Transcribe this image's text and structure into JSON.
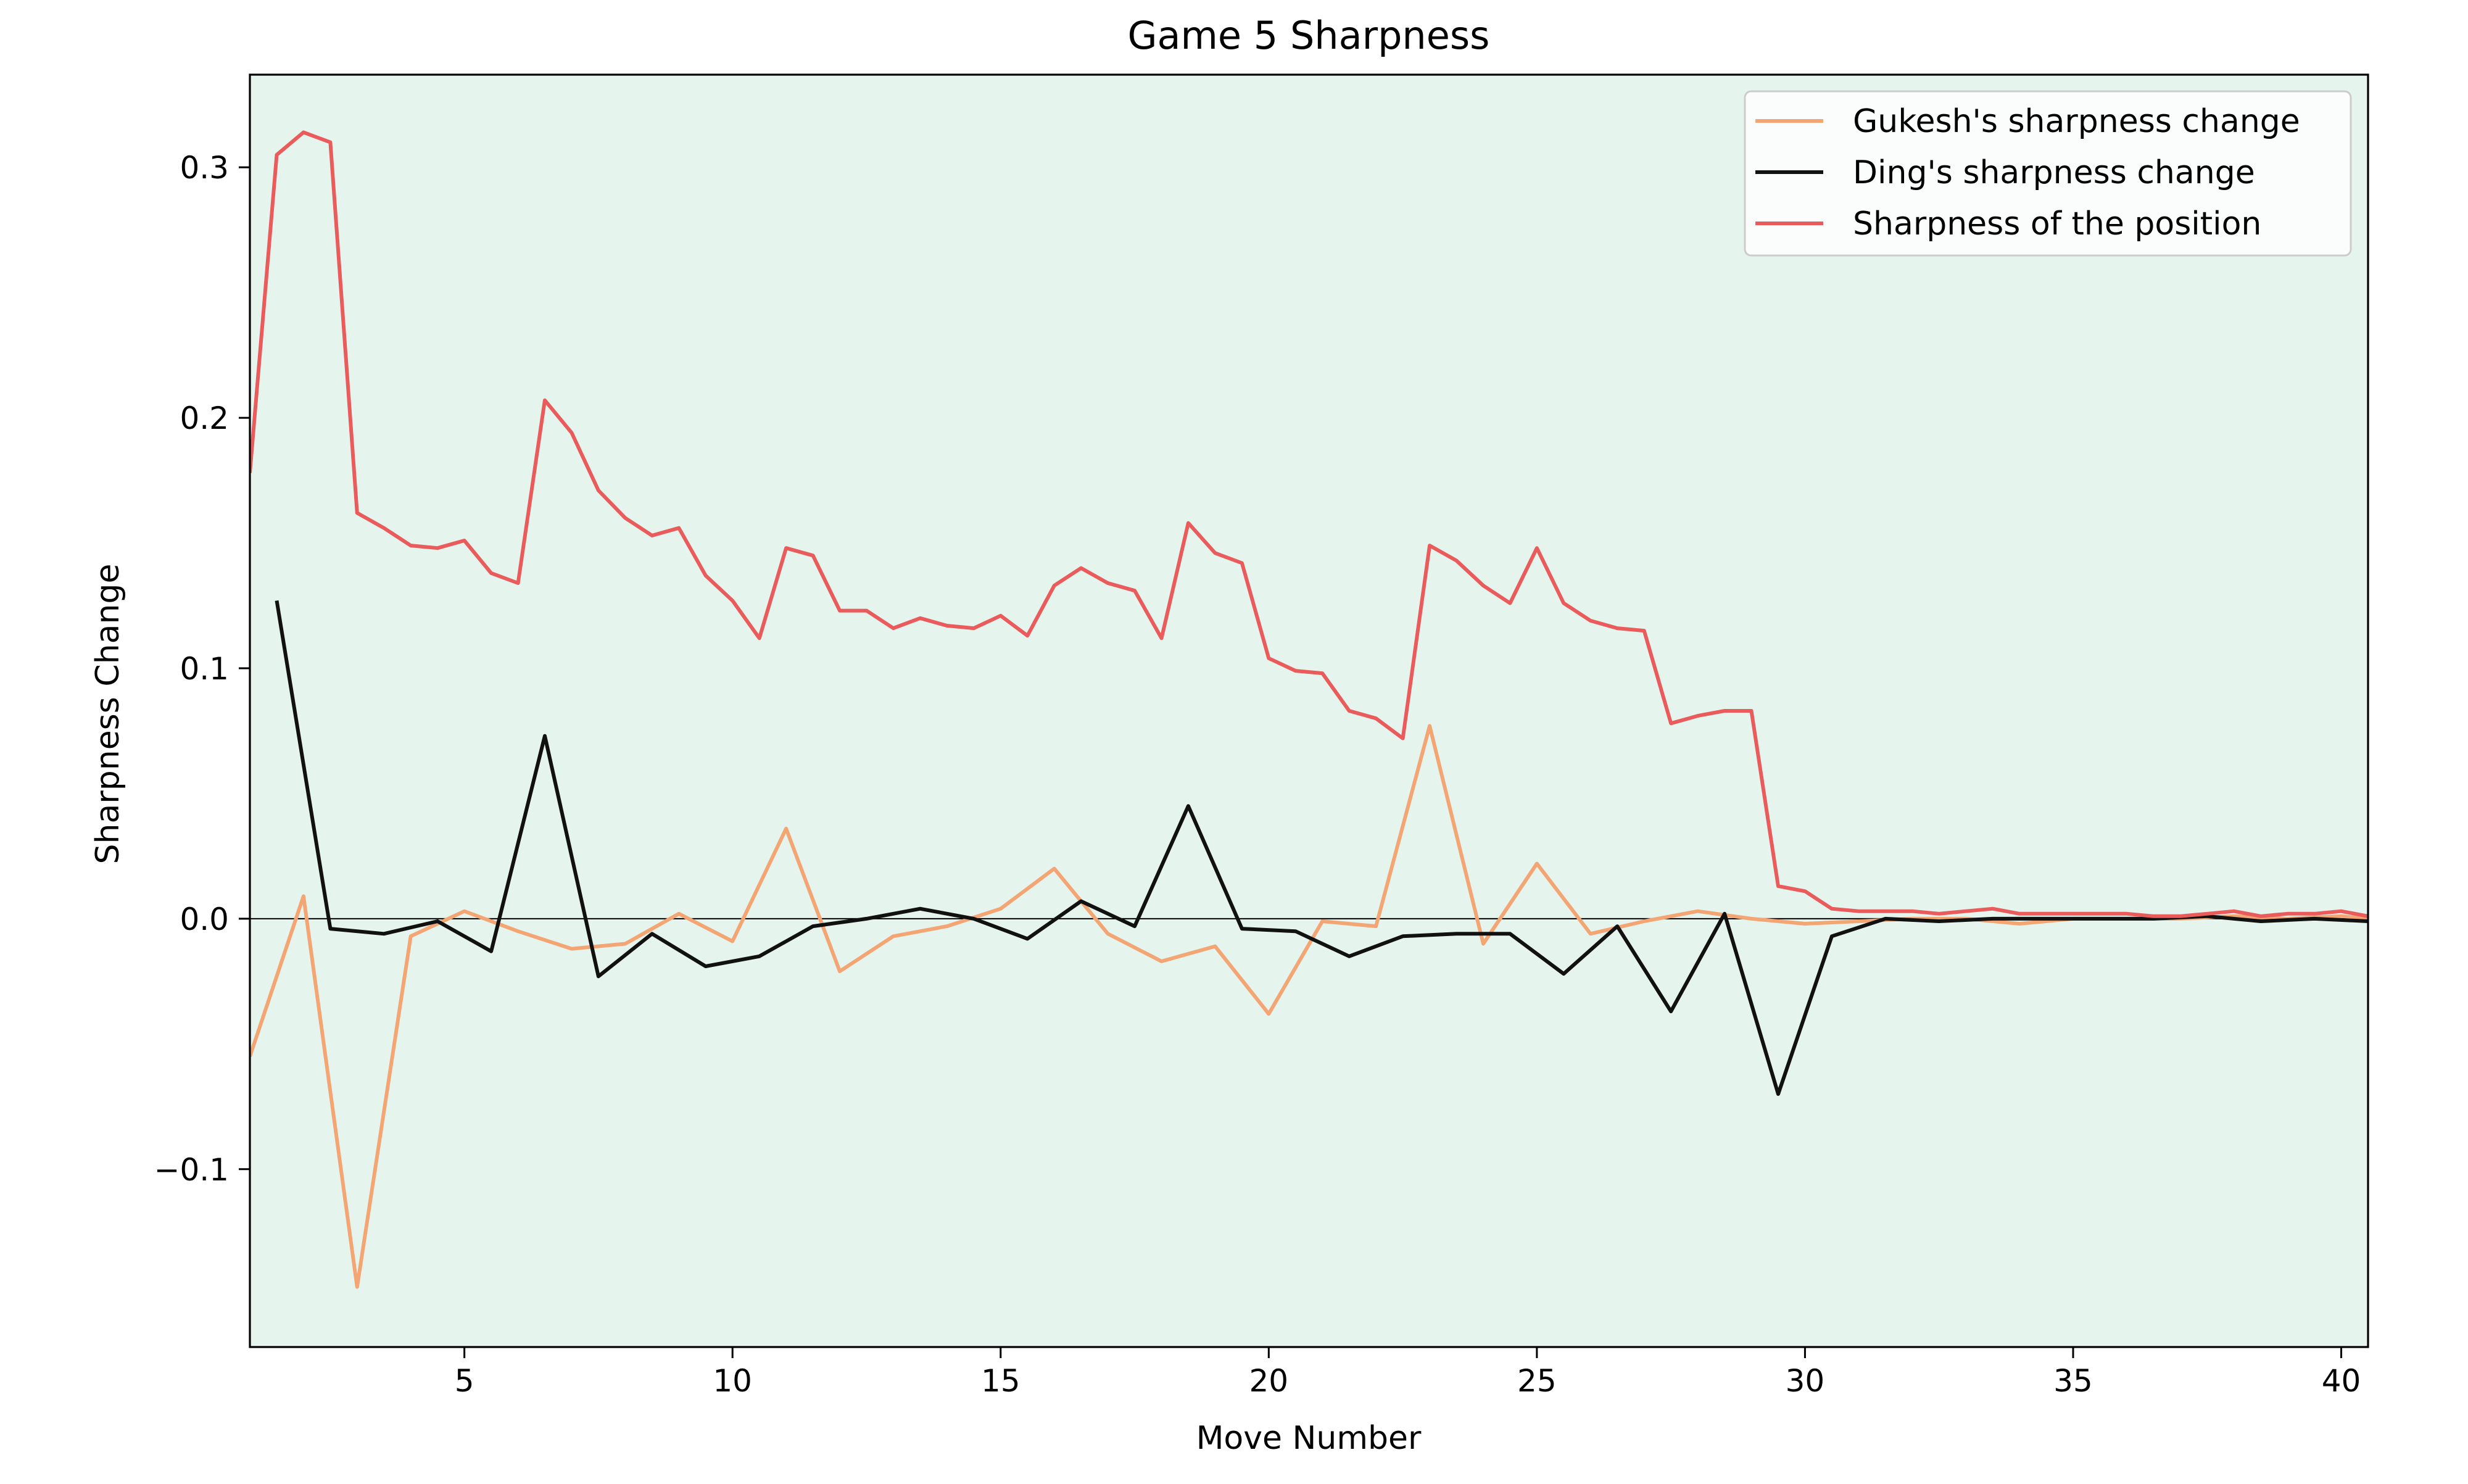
{
  "chart_data": {
    "type": "line",
    "title": "Game 5 Sharpness",
    "xlabel": "Move Number",
    "ylabel": "Sharpness Change",
    "xlim": [
      1,
      40.5
    ],
    "ylim": [
      -0.171,
      0.337
    ],
    "x_ticks": [
      5,
      10,
      15,
      20,
      25,
      30,
      35,
      40
    ],
    "y_ticks": [
      -0.1,
      0.0,
      0.1,
      0.2,
      0.3
    ],
    "grid": false,
    "zero_line": true,
    "plot_background": "#e5f5ee",
    "legend_position": "top-right",
    "series": [
      {
        "name": "Gukesh's sharpness change",
        "color": "#f4a574",
        "points": [
          [
            1.0,
            -0.055
          ],
          [
            2.0,
            0.009
          ],
          [
            3.0,
            -0.147
          ],
          [
            4.0,
            -0.007
          ],
          [
            5.0,
            0.003
          ],
          [
            6.0,
            -0.005
          ],
          [
            7.0,
            -0.012
          ],
          [
            8.0,
            -0.01
          ],
          [
            9.0,
            0.002
          ],
          [
            10.0,
            -0.009
          ],
          [
            11.0,
            0.036
          ],
          [
            12.0,
            -0.021
          ],
          [
            13.0,
            -0.007
          ],
          [
            14.0,
            -0.003
          ],
          [
            15.0,
            0.004
          ],
          [
            16.0,
            0.02
          ],
          [
            17.0,
            -0.006
          ],
          [
            18.0,
            -0.017
          ],
          [
            19.0,
            -0.011
          ],
          [
            20.0,
            -0.038
          ],
          [
            21.0,
            -0.001
          ],
          [
            22.0,
            -0.003
          ],
          [
            23.0,
            0.077
          ],
          [
            24.0,
            -0.01
          ],
          [
            25.0,
            0.022
          ],
          [
            26.0,
            -0.006
          ],
          [
            27.0,
            -0.001
          ],
          [
            28.0,
            0.003
          ],
          [
            29.0,
            0.0
          ],
          [
            30.0,
            -0.002
          ],
          [
            31.0,
            -0.001
          ],
          [
            32.0,
            0.0
          ],
          [
            33.0,
            0.0
          ],
          [
            34.0,
            -0.002
          ],
          [
            35.0,
            0.0
          ],
          [
            36.0,
            0.0
          ],
          [
            37.0,
            0.0
          ],
          [
            38.0,
            0.001
          ],
          [
            39.0,
            0.0
          ],
          [
            40.0,
            0.001
          ],
          [
            40.5,
            0.0
          ]
        ]
      },
      {
        "name": "Ding's sharpness change",
        "color": "#111111",
        "points": [
          [
            1.5,
            0.127
          ],
          [
            2.5,
            -0.004
          ],
          [
            3.5,
            -0.006
          ],
          [
            4.5,
            -0.001
          ],
          [
            5.5,
            -0.013
          ],
          [
            6.5,
            0.073
          ],
          [
            7.5,
            -0.023
          ],
          [
            8.5,
            -0.006
          ],
          [
            9.5,
            -0.019
          ],
          [
            10.5,
            -0.015
          ],
          [
            11.5,
            -0.003
          ],
          [
            12.5,
            0.0
          ],
          [
            13.5,
            0.004
          ],
          [
            14.5,
            0.0
          ],
          [
            15.5,
            -0.008
          ],
          [
            16.5,
            0.007
          ],
          [
            17.5,
            -0.003
          ],
          [
            18.5,
            0.045
          ],
          [
            19.5,
            -0.004
          ],
          [
            20.5,
            -0.005
          ],
          [
            21.5,
            -0.015
          ],
          [
            22.5,
            -0.007
          ],
          [
            23.5,
            -0.006
          ],
          [
            24.5,
            -0.006
          ],
          [
            25.5,
            -0.022
          ],
          [
            26.5,
            -0.003
          ],
          [
            27.5,
            -0.037
          ],
          [
            28.5,
            0.002
          ],
          [
            29.5,
            -0.07
          ],
          [
            30.5,
            -0.007
          ],
          [
            31.5,
            0.0
          ],
          [
            32.5,
            -0.001
          ],
          [
            33.5,
            0.0
          ],
          [
            34.5,
            0.0
          ],
          [
            35.5,
            0.0
          ],
          [
            36.5,
            0.0
          ],
          [
            37.5,
            0.001
          ],
          [
            38.5,
            -0.001
          ],
          [
            39.5,
            0.0
          ],
          [
            40.5,
            -0.001
          ]
        ]
      },
      {
        "name": "Sharpness of the position",
        "color": "#ea5b5b",
        "points": [
          [
            1.0,
            0.178
          ],
          [
            1.5,
            0.305
          ],
          [
            2.0,
            0.314
          ],
          [
            2.5,
            0.31
          ],
          [
            3.0,
            0.162
          ],
          [
            3.5,
            0.156
          ],
          [
            4.0,
            0.149
          ],
          [
            4.5,
            0.148
          ],
          [
            5.0,
            0.151
          ],
          [
            5.5,
            0.138
          ],
          [
            6.0,
            0.134
          ],
          [
            6.5,
            0.207
          ],
          [
            7.0,
            0.194
          ],
          [
            7.5,
            0.171
          ],
          [
            8.0,
            0.16
          ],
          [
            8.5,
            0.153
          ],
          [
            9.0,
            0.156
          ],
          [
            9.5,
            0.137
          ],
          [
            10.0,
            0.127
          ],
          [
            10.5,
            0.112
          ],
          [
            11.0,
            0.148
          ],
          [
            11.5,
            0.145
          ],
          [
            12.0,
            0.123
          ],
          [
            12.5,
            0.123
          ],
          [
            13.0,
            0.116
          ],
          [
            13.5,
            0.12
          ],
          [
            14.0,
            0.117
          ],
          [
            14.5,
            0.116
          ],
          [
            15.0,
            0.121
          ],
          [
            15.5,
            0.113
          ],
          [
            16.0,
            0.133
          ],
          [
            16.5,
            0.14
          ],
          [
            17.0,
            0.134
          ],
          [
            17.5,
            0.131
          ],
          [
            18.0,
            0.112
          ],
          [
            18.5,
            0.158
          ],
          [
            19.0,
            0.146
          ],
          [
            19.5,
            0.142
          ],
          [
            20.0,
            0.104
          ],
          [
            20.5,
            0.099
          ],
          [
            21.0,
            0.098
          ],
          [
            21.5,
            0.083
          ],
          [
            22.0,
            0.08
          ],
          [
            22.5,
            0.072
          ],
          [
            23.0,
            0.149
          ],
          [
            23.5,
            0.143
          ],
          [
            24.0,
            0.133
          ],
          [
            24.5,
            0.126
          ],
          [
            25.0,
            0.148
          ],
          [
            25.5,
            0.126
          ],
          [
            26.0,
            0.119
          ],
          [
            26.5,
            0.116
          ],
          [
            27.0,
            0.115
          ],
          [
            27.5,
            0.078
          ],
          [
            28.0,
            0.081
          ],
          [
            28.5,
            0.083
          ],
          [
            29.0,
            0.083
          ],
          [
            29.5,
            0.013
          ],
          [
            30.0,
            0.011
          ],
          [
            30.5,
            0.004
          ],
          [
            31.0,
            0.003
          ],
          [
            31.5,
            0.003
          ],
          [
            32.0,
            0.003
          ],
          [
            32.5,
            0.002
          ],
          [
            33.0,
            0.003
          ],
          [
            33.5,
            0.004
          ],
          [
            34.0,
            0.002
          ],
          [
            34.5,
            0.002
          ],
          [
            35.0,
            0.002
          ],
          [
            35.5,
            0.002
          ],
          [
            36.0,
            0.002
          ],
          [
            36.5,
            0.001
          ],
          [
            37.0,
            0.001
          ],
          [
            37.5,
            0.002
          ],
          [
            38.0,
            0.003
          ],
          [
            38.5,
            0.001
          ],
          [
            39.0,
            0.002
          ],
          [
            39.5,
            0.002
          ],
          [
            40.0,
            0.003
          ],
          [
            40.5,
            0.001
          ]
        ]
      }
    ]
  }
}
